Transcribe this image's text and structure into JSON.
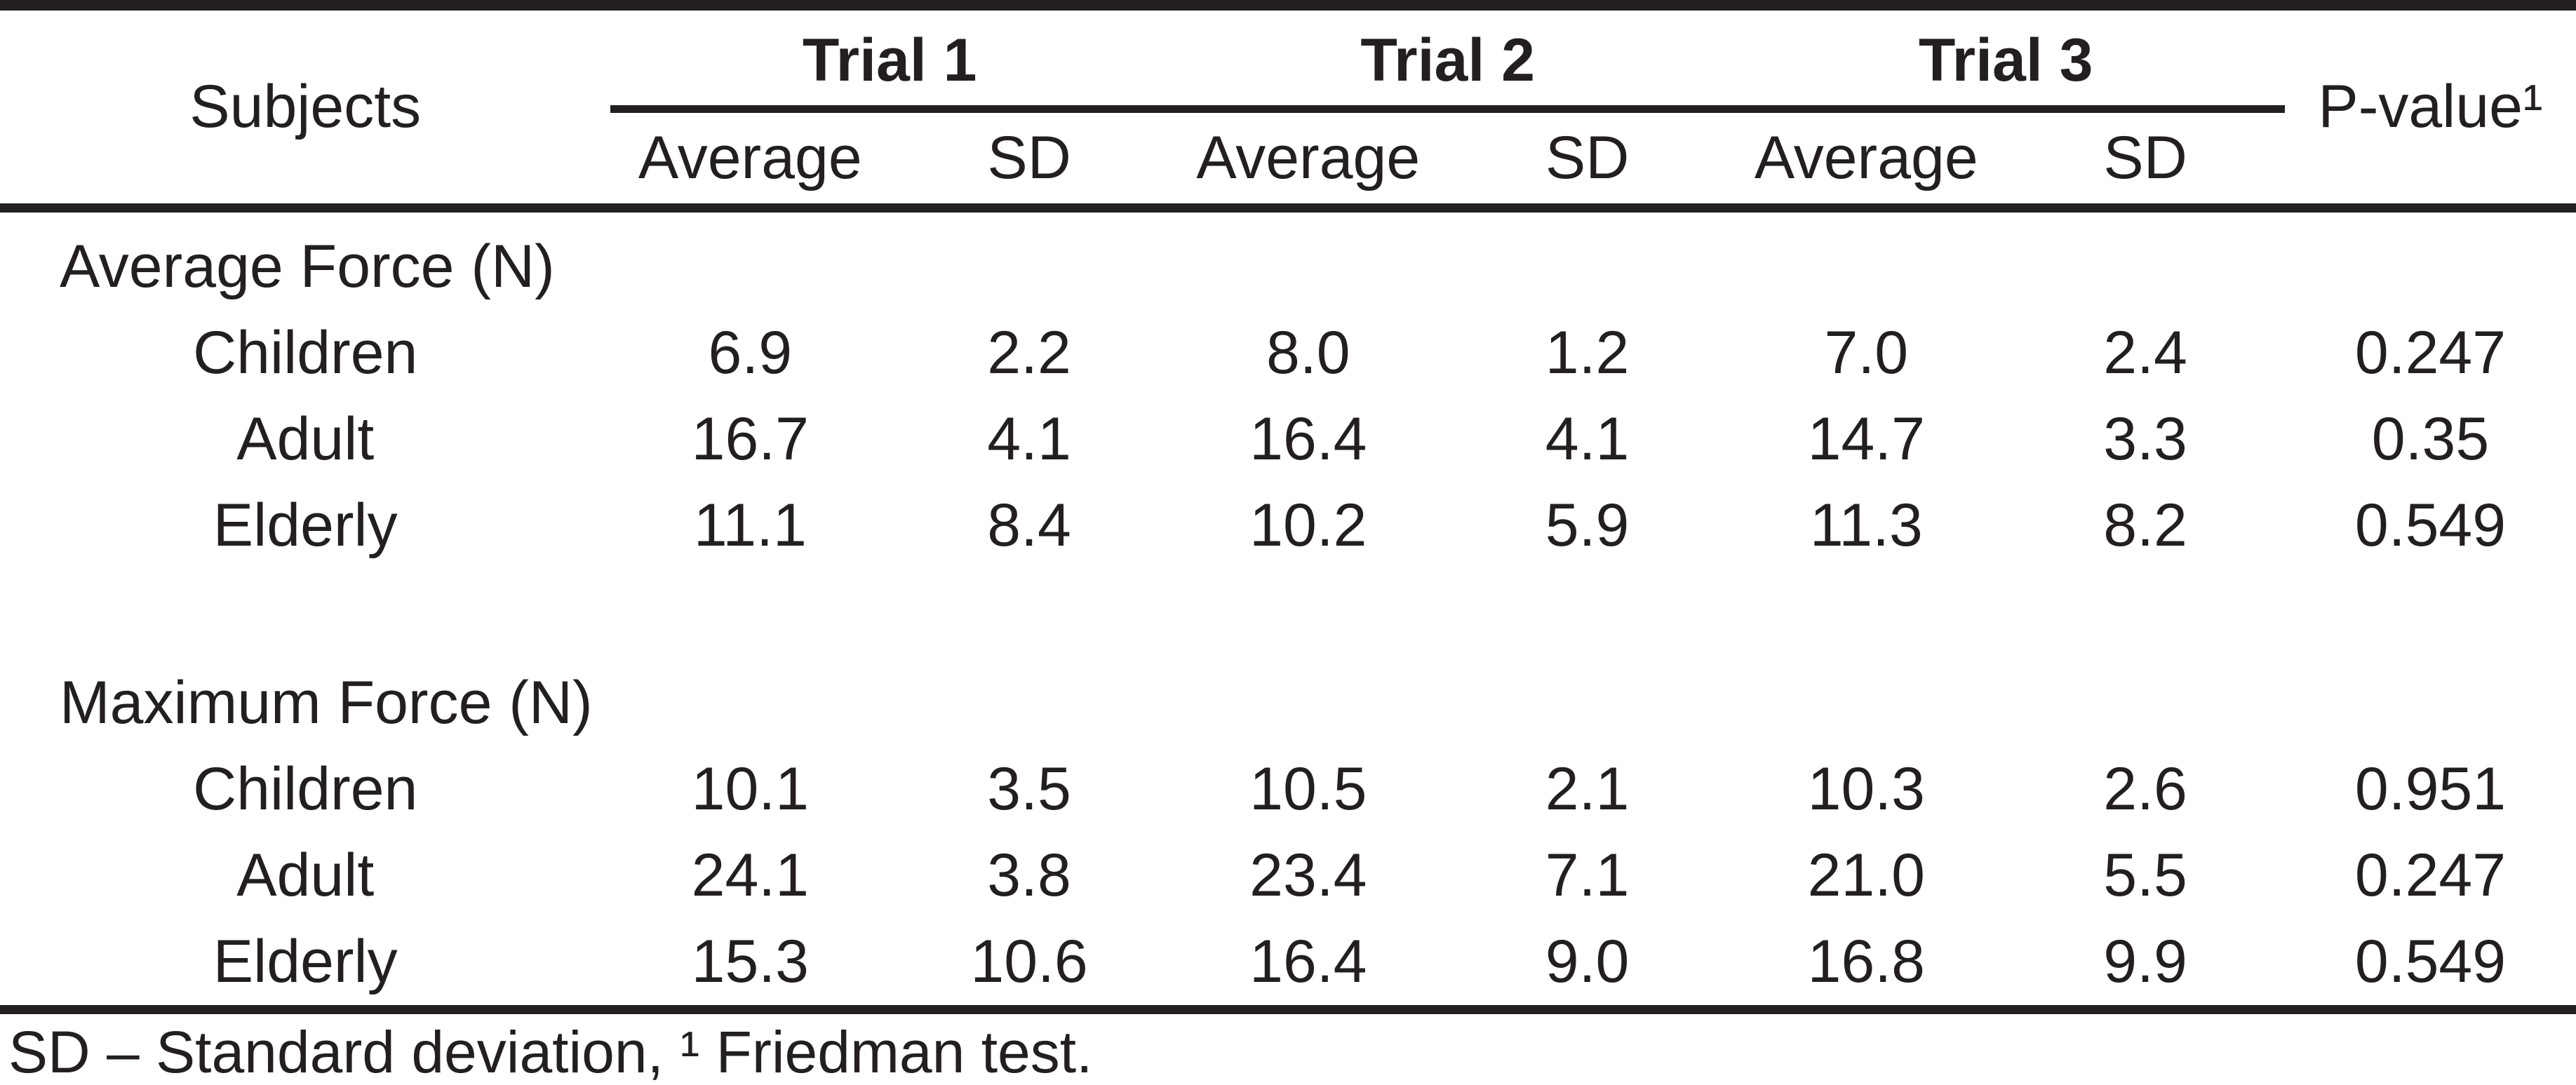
{
  "table": {
    "header": {
      "subjects": "Subjects",
      "trials": [
        "Trial 1",
        "Trial 2",
        "Trial 3"
      ],
      "subheaders": [
        "Average",
        "SD",
        "Average",
        "SD",
        "Average",
        "SD"
      ],
      "pvalue": "P-value¹"
    },
    "sections": [
      {
        "title": "Average Force (N)",
        "rows": [
          {
            "subject": "Children",
            "values": [
              "6.9",
              "2.2",
              "8.0",
              "1.2",
              "7.0",
              "2.4"
            ],
            "pvalue": "0.247"
          },
          {
            "subject": "Adult",
            "values": [
              "16.7",
              "4.1",
              "16.4",
              "4.1",
              "14.7",
              "3.3"
            ],
            "pvalue": "0.35"
          },
          {
            "subject": "Elderly",
            "values": [
              "11.1",
              "8.4",
              "10.2",
              "5.9",
              "11.3",
              "8.2"
            ],
            "pvalue": "0.549"
          }
        ]
      },
      {
        "title": "Maximum Force (N)",
        "rows": [
          {
            "subject": "Children",
            "values": [
              "10.1",
              "3.5",
              "10.5",
              "2.1",
              "10.3",
              "2.6"
            ],
            "pvalue": "0.951"
          },
          {
            "subject": "Adult",
            "values": [
              "24.1",
              "3.8",
              "23.4",
              "7.1",
              "21.0",
              "5.5"
            ],
            "pvalue": "0.247"
          },
          {
            "subject": "Elderly",
            "values": [
              "15.3",
              "10.6",
              "16.4",
              "9.0",
              "16.8",
              "9.9"
            ],
            "pvalue": "0.549"
          }
        ]
      }
    ],
    "footnote": "SD – Standard deviation, ¹ Friedman test."
  },
  "colors": {
    "text": "#231f20",
    "rule": "#231f20",
    "background": "#ffffff"
  }
}
